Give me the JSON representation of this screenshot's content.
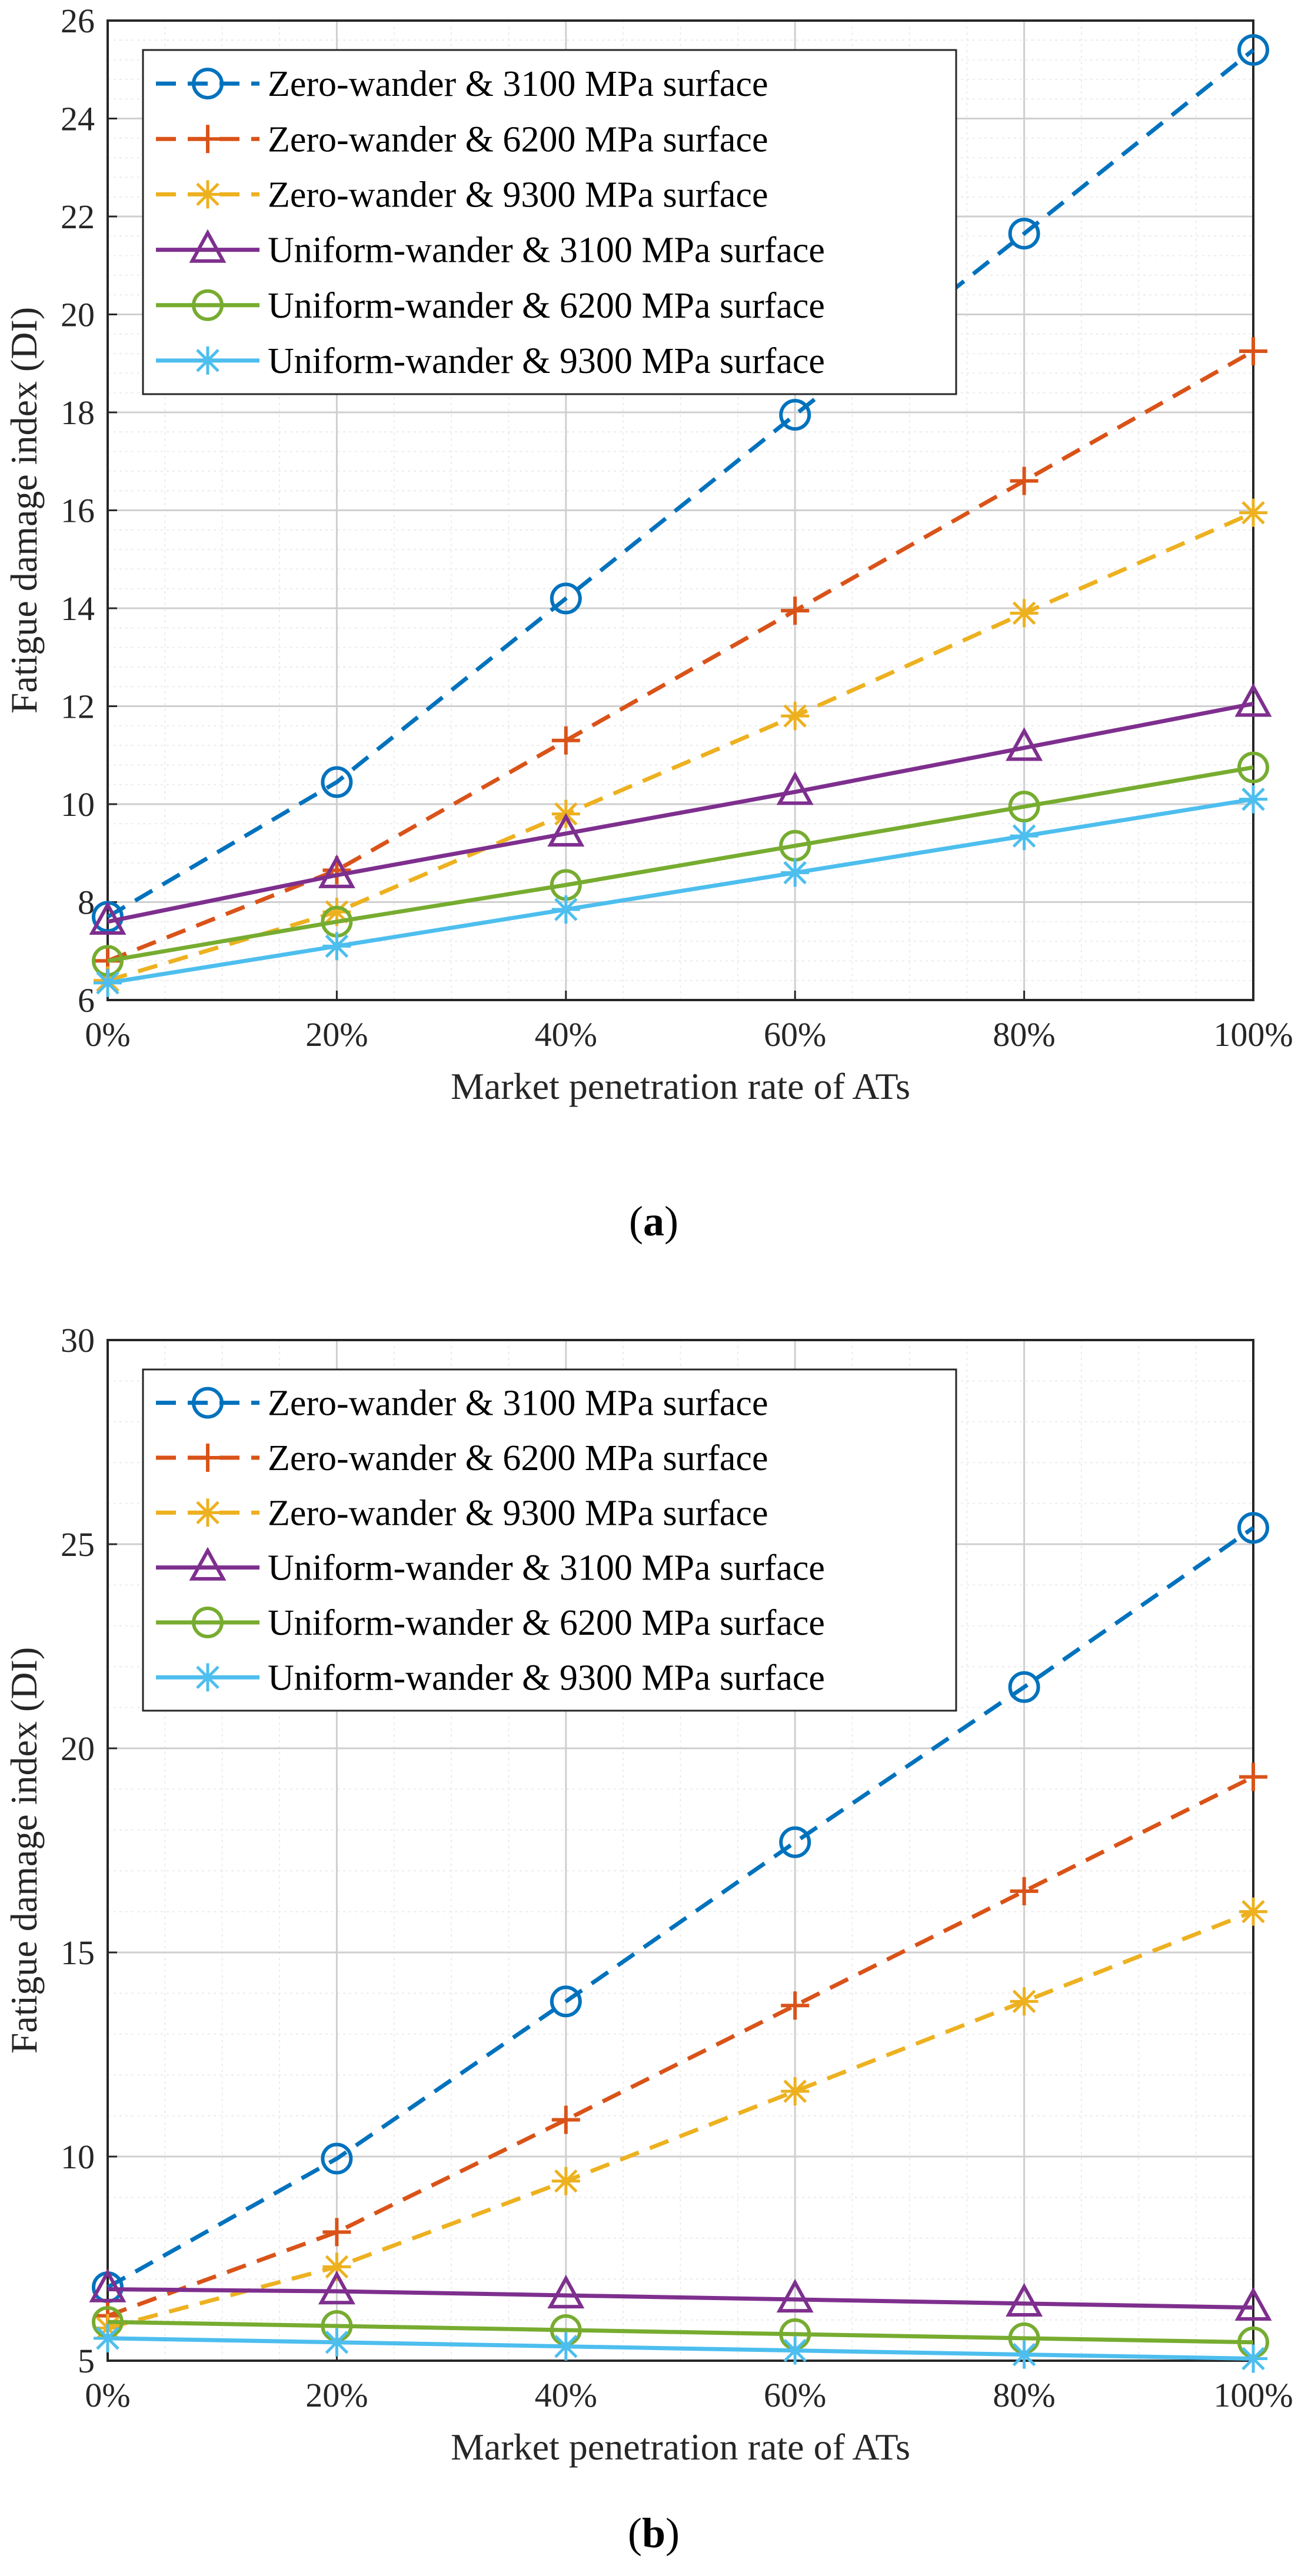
{
  "colors": {
    "zero_3100": "#0072BD",
    "zero_6200": "#D95319",
    "zero_9300": "#EDB120",
    "uniform_3100": "#7E2F8E",
    "uniform_6200": "#77AC30",
    "uniform_9300": "#4DBEEE",
    "grid_major": "#cfcfcf",
    "grid_minor": "#ececec",
    "axis": "#262626"
  },
  "chart_data": [
    {
      "type": "line",
      "panel_label": "(a)",
      "panel_letter": "a",
      "xlabel": "Market penetration rate of ATs",
      "ylabel": "Fatigue damage index (DI)",
      "categories": [
        "0%",
        "20%",
        "40%",
        "60%",
        "80%",
        "100%"
      ],
      "x": [
        0,
        20,
        40,
        60,
        80,
        100
      ],
      "xlim": [
        0,
        100
      ],
      "ylim": [
        6,
        26
      ],
      "yticks": [
        6,
        8,
        10,
        12,
        14,
        16,
        18,
        20,
        22,
        24,
        26
      ],
      "grid": true,
      "legend_location": "top-left",
      "series": [
        {
          "name": "Zero-wander & 3100 MPa surface",
          "style": "dashed",
          "marker": "circle",
          "color_key": "zero_3100",
          "values": [
            7.7,
            10.45,
            14.2,
            17.95,
            21.65,
            25.4
          ]
        },
        {
          "name": "Zero-wander & 6200 MPa surface",
          "style": "dashed",
          "marker": "plus",
          "color_key": "zero_6200",
          "values": [
            6.8,
            8.65,
            11.3,
            13.95,
            16.6,
            19.25
          ]
        },
        {
          "name": "Zero-wander & 9300 MPa surface",
          "style": "dashed",
          "marker": "asterisk",
          "color_key": "zero_9300",
          "values": [
            6.4,
            7.8,
            9.8,
            11.8,
            13.9,
            15.95
          ]
        },
        {
          "name": "Uniform-wander & 3100 MPa surface",
          "style": "solid",
          "marker": "triangle",
          "color_key": "uniform_3100",
          "values": [
            7.6,
            8.55,
            9.4,
            10.25,
            11.15,
            12.05
          ]
        },
        {
          "name": "Uniform-wander & 6200 MPa surface",
          "style": "solid",
          "marker": "circle",
          "color_key": "uniform_6200",
          "values": [
            6.8,
            7.6,
            8.35,
            9.15,
            9.95,
            10.75
          ]
        },
        {
          "name": "Uniform-wander & 9300 MPa surface",
          "style": "solid",
          "marker": "asterisk",
          "color_key": "uniform_9300",
          "values": [
            6.35,
            7.1,
            7.85,
            8.6,
            9.35,
            10.1
          ]
        }
      ]
    },
    {
      "type": "line",
      "panel_label": "(b)",
      "panel_letter": "b",
      "xlabel": "Market penetration rate of ATs",
      "ylabel": "Fatigue damage index (DI)",
      "categories": [
        "0%",
        "20%",
        "40%",
        "60%",
        "80%",
        "100%"
      ],
      "x": [
        0,
        20,
        40,
        60,
        80,
        100
      ],
      "xlim": [
        0,
        100
      ],
      "ylim": [
        5,
        30
      ],
      "yticks": [
        5,
        10,
        15,
        20,
        25,
        30
      ],
      "grid": true,
      "legend_location": "top-left",
      "series": [
        {
          "name": "Zero-wander & 3100 MPa surface",
          "style": "dashed",
          "marker": "circle",
          "color_key": "zero_3100",
          "values": [
            6.8,
            9.95,
            13.8,
            17.7,
            21.5,
            25.4
          ]
        },
        {
          "name": "Zero-wander & 6200 MPa surface",
          "style": "dashed",
          "marker": "plus",
          "color_key": "zero_6200",
          "values": [
            6.1,
            8.15,
            10.9,
            13.7,
            16.5,
            19.3
          ]
        },
        {
          "name": "Zero-wander & 9300 MPa surface",
          "style": "dashed",
          "marker": "asterisk",
          "color_key": "zero_9300",
          "values": [
            5.8,
            7.3,
            9.4,
            11.6,
            13.8,
            16.0
          ]
        },
        {
          "name": "Uniform-wander & 3100 MPa surface",
          "style": "solid",
          "marker": "triangle",
          "color_key": "uniform_3100",
          "values": [
            6.75,
            6.7,
            6.6,
            6.5,
            6.4,
            6.3
          ]
        },
        {
          "name": "Uniform-wander & 6200 MPa surface",
          "style": "solid",
          "marker": "circle",
          "color_key": "uniform_6200",
          "values": [
            5.95,
            5.85,
            5.75,
            5.65,
            5.55,
            5.45
          ]
        },
        {
          "name": "Uniform-wander & 9300 MPa surface",
          "style": "solid",
          "marker": "asterisk",
          "color_key": "uniform_9300",
          "values": [
            5.55,
            5.45,
            5.35,
            5.25,
            5.15,
            5.05
          ]
        }
      ]
    }
  ]
}
